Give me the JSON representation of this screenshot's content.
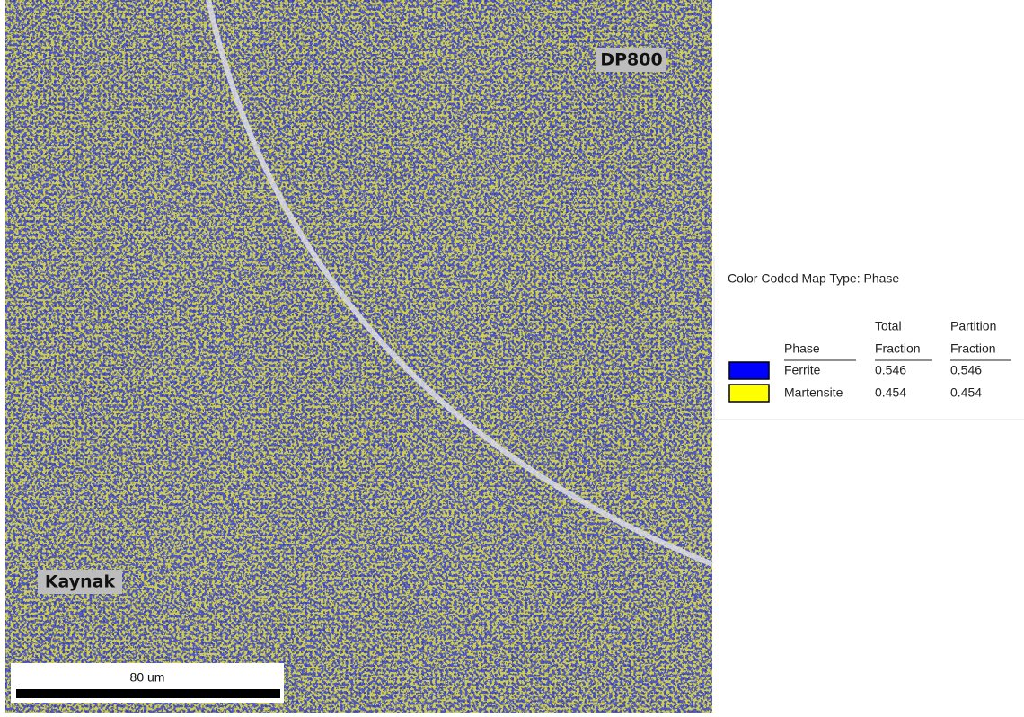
{
  "map": {
    "labels": [
      "DP800",
      "Kaynak"
    ],
    "scale_bar": "80 um"
  },
  "legend": {
    "title": "Color Coded Map Type: Phase",
    "columns": [
      [
        "Phase"
      ],
      [
        "Total",
        "Fraction"
      ],
      [
        "Partition",
        "Fraction"
      ]
    ],
    "rows": [
      {
        "phase": "Ferrite",
        "color": "#0000ff",
        "total": "0.546",
        "partition": "0.546"
      },
      {
        "phase": "Martensite",
        "color": "#ffff00",
        "total": "0.454",
        "partition": "0.454"
      }
    ]
  }
}
